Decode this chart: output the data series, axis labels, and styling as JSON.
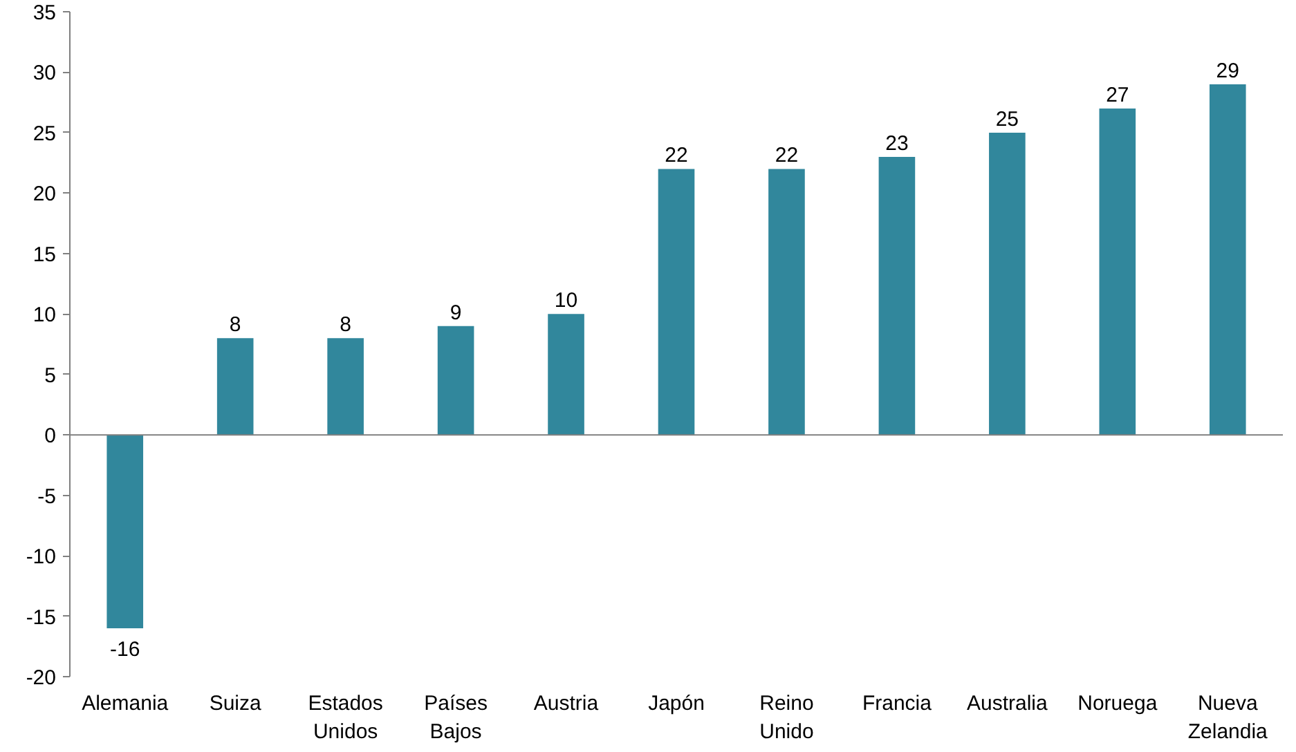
{
  "chart_data": {
    "type": "bar",
    "categories": [
      "Alemania",
      "Suiza",
      "Estados Unidos",
      "Países Bajos",
      "Austria",
      "Japón",
      "Reino Unido",
      "Francia",
      "Australia",
      "Noruega",
      "Nueva Zelandia"
    ],
    "values": [
      -16,
      8,
      8,
      9,
      10,
      22,
      22,
      23,
      25,
      27,
      29
    ],
    "color": "#31879c",
    "ylim": [
      -20,
      35
    ],
    "yticks": [
      -20,
      -15,
      -10,
      -5,
      0,
      5,
      10,
      15,
      20,
      25,
      30,
      35
    ],
    "data_labels": true
  }
}
